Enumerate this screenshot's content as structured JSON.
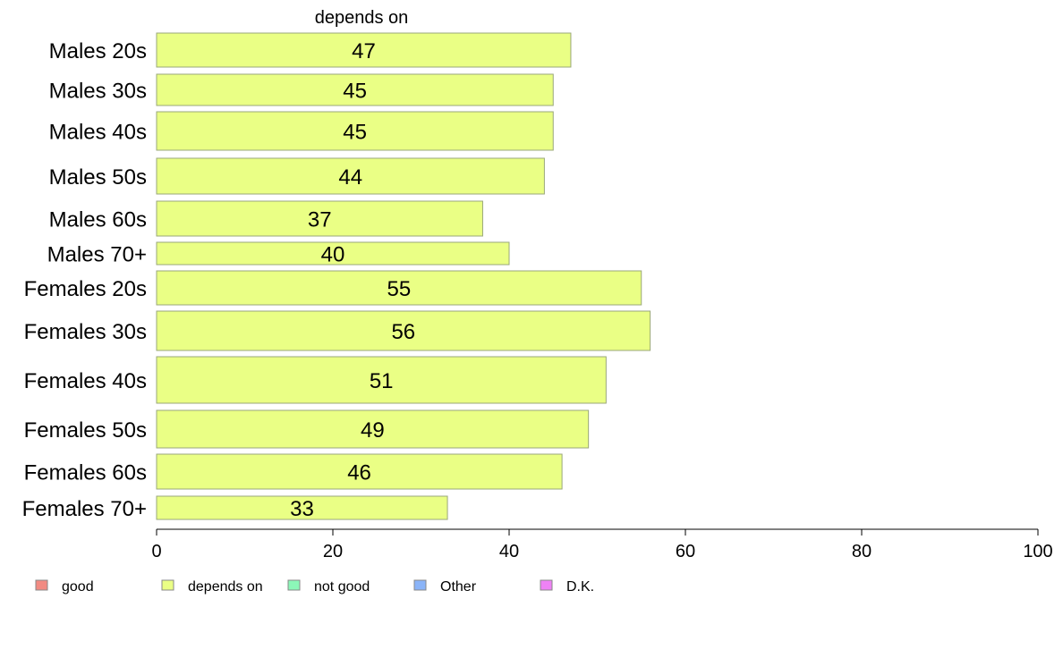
{
  "chart_data": {
    "type": "bar",
    "orientation": "horizontal",
    "title": "depends on",
    "categories": [
      "Males 20s",
      "Males 30s",
      "Males 40s",
      "Males 50s",
      "Males 60s",
      "Males 70+",
      "Females 20s",
      "Females 30s",
      "Females 40s",
      "Females 50s",
      "Females 60s",
      "Females 70+"
    ],
    "series": [
      {
        "name": "depends on",
        "values": [
          47,
          45,
          45,
          44,
          37,
          40,
          55,
          56,
          51,
          49,
          46,
          33
        ]
      }
    ],
    "xlim": [
      0,
      100
    ],
    "xticks": [
      0,
      20,
      40,
      60,
      80,
      100
    ],
    "grid": false,
    "legend": {
      "placement": "bottom",
      "items": [
        {
          "label": "good",
          "color": "#f28b82"
        },
        {
          "label": "depends on",
          "color": "#eaff85"
        },
        {
          "label": "not good",
          "color": "#8cf7b8"
        },
        {
          "label": "Other",
          "color": "#8ab4f8"
        },
        {
          "label": "D.K.",
          "color": "#ee82f5"
        }
      ]
    },
    "bar_color": "#eaff85",
    "bar_stroke": "#9aa77a"
  }
}
